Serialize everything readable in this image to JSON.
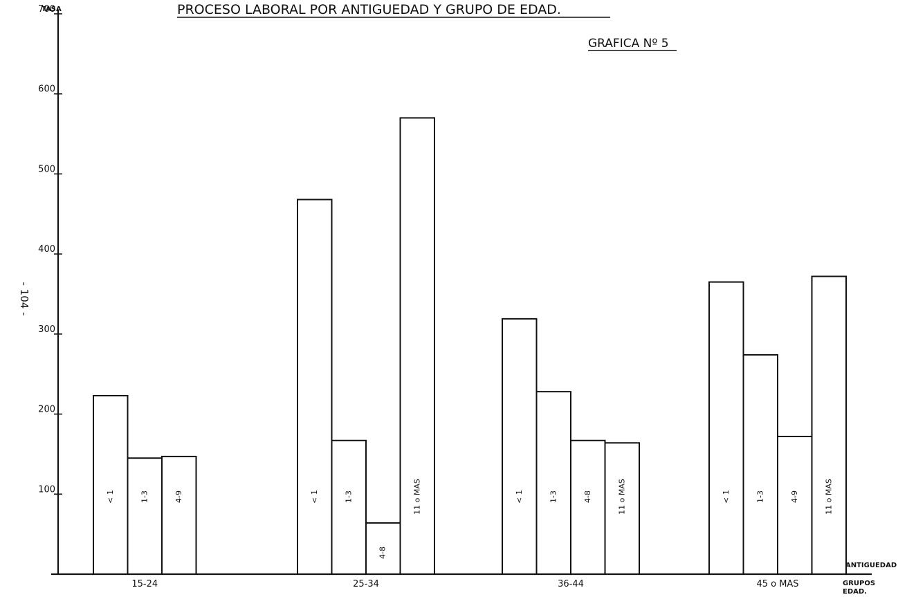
{
  "header": {
    "title": "PROCESO LABORAL POR ANTIGUEDAD Y GRUPO DE EDAD.",
    "figure_label": "GRAFICA Nº 5",
    "page_number": "- 104 -"
  },
  "chart_data": {
    "type": "bar",
    "title": "PROCESO LABORAL POR ANTIGUEDAD Y GRUPO DE EDAD.",
    "ylabel": "TASA",
    "xlabel": "GRUPOS EDAD.",
    "series_axis_label": "ANTIGUEDAD",
    "ylim": [
      0,
      700
    ],
    "yticks": [
      100,
      200,
      300,
      400,
      500,
      600,
      700
    ],
    "ytick_labels": [
      "100",
      "200",
      "300",
      "400",
      "500",
      "600",
      "700"
    ],
    "grid": false,
    "groups": [
      {
        "name": "15-24",
        "bars": [
          {
            "label": "< 1",
            "value": 223
          },
          {
            "label": "1-3",
            "value": 145
          },
          {
            "label": "4-9",
            "value": 147
          }
        ]
      },
      {
        "name": "25-34",
        "bars": [
          {
            "label": "< 1",
            "value": 468
          },
          {
            "label": "1-3",
            "value": 167
          },
          {
            "label": "4-8",
            "value": 64
          },
          {
            "label": "11 o MAS",
            "value": 570
          }
        ]
      },
      {
        "name": "36-44",
        "bars": [
          {
            "label": "< 1",
            "value": 319
          },
          {
            "label": "1-3",
            "value": 228
          },
          {
            "label": "4-8",
            "value": 167
          },
          {
            "label": "11 o MAS",
            "value": 164
          }
        ]
      },
      {
        "name": "45 o MAS",
        "bars": [
          {
            "label": "< 1",
            "value": 365
          },
          {
            "label": "1-3",
            "value": 274
          },
          {
            "label": "4-9",
            "value": 172
          },
          {
            "label": "11 o MAS",
            "value": 372
          }
        ]
      }
    ]
  }
}
